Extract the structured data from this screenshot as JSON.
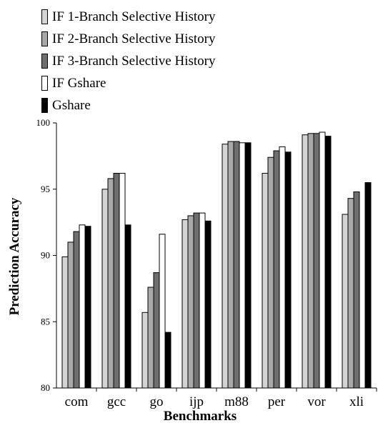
{
  "chart_data": {
    "type": "bar",
    "title": "",
    "xlabel": "Benchmarks",
    "ylabel": "Prediction Accuracy",
    "ylim": [
      80,
      100
    ],
    "yticks": [
      "80",
      "85",
      "90",
      "95",
      "100"
    ],
    "categories": [
      "com",
      "gcc",
      "go",
      "ijp",
      "m88",
      "per",
      "vor",
      "xli"
    ],
    "series": [
      {
        "name": "IF 1-Branch Selective History",
        "color": "#d4d4d4",
        "values": [
          89.9,
          95.0,
          85.7,
          92.7,
          98.4,
          96.2,
          99.1,
          93.1
        ]
      },
      {
        "name": "IF 2-Branch Selective History",
        "color": "#a8a8a8",
        "values": [
          91.0,
          95.8,
          87.6,
          93.0,
          98.6,
          97.4,
          99.2,
          94.3
        ]
      },
      {
        "name": "IF 3-Branch Selective History",
        "color": "#6e6e6e",
        "values": [
          91.8,
          96.2,
          88.7,
          93.2,
          98.6,
          97.9,
          99.2,
          94.8
        ]
      },
      {
        "name": "IF Gshare",
        "color": "#ffffff",
        "values": [
          92.3,
          96.2,
          91.6,
          93.2,
          98.5,
          98.2,
          99.3,
          null
        ]
      },
      {
        "name": "Gshare",
        "color": "#000000",
        "values": [
          92.2,
          92.3,
          84.2,
          92.6,
          98.5,
          97.8,
          99.0,
          95.5
        ]
      }
    ],
    "grid": false,
    "legend_position": "top-left"
  }
}
